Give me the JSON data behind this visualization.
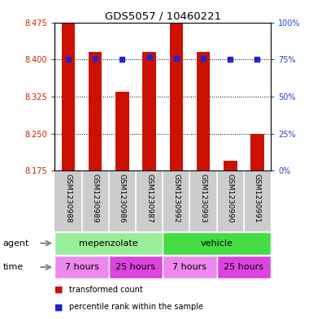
{
  "title": "GDS5057 / 10460221",
  "samples": [
    "GSM1230988",
    "GSM1230989",
    "GSM1230986",
    "GSM1230987",
    "GSM1230992",
    "GSM1230993",
    "GSM1230990",
    "GSM1230991"
  ],
  "bar_values": [
    8.475,
    8.415,
    8.335,
    8.415,
    8.475,
    8.415,
    8.195,
    8.25
  ],
  "bar_bottom": 8.175,
  "dot_values": [
    8.4,
    8.402,
    8.4,
    8.405,
    8.402,
    8.402,
    8.4,
    8.4
  ],
  "ylim_left": [
    8.175,
    8.475
  ],
  "ylim_right": [
    0,
    100
  ],
  "yticks_left": [
    8.175,
    8.25,
    8.325,
    8.4,
    8.475
  ],
  "yticks_right": [
    0,
    25,
    50,
    75,
    100
  ],
  "bar_color": "#cc1100",
  "dot_color": "#2222cc",
  "agent_groups": [
    {
      "label": "mepenzolate",
      "start": 0,
      "end": 4,
      "color": "#99ee99"
    },
    {
      "label": "vehicle",
      "start": 4,
      "end": 8,
      "color": "#44dd44"
    }
  ],
  "time_groups": [
    {
      "label": "7 hours",
      "start": 0,
      "end": 2,
      "color": "#ee88ee"
    },
    {
      "label": "25 hours",
      "start": 2,
      "end": 4,
      "color": "#dd44dd"
    },
    {
      "label": "7 hours",
      "start": 4,
      "end": 6,
      "color": "#ee88ee"
    },
    {
      "label": "25 hours",
      "start": 6,
      "end": 8,
      "color": "#dd44dd"
    }
  ],
  "legend_items": [
    {
      "label": "transformed count",
      "color": "#cc1100"
    },
    {
      "label": "percentile rank within the sample",
      "color": "#2222cc"
    }
  ],
  "bg_color": "#ffffff",
  "tick_label_color_left": "#cc2200",
  "tick_label_color_right": "#2244cc",
  "sample_bg_color": "#cccccc",
  "arrow_color": "#888888"
}
